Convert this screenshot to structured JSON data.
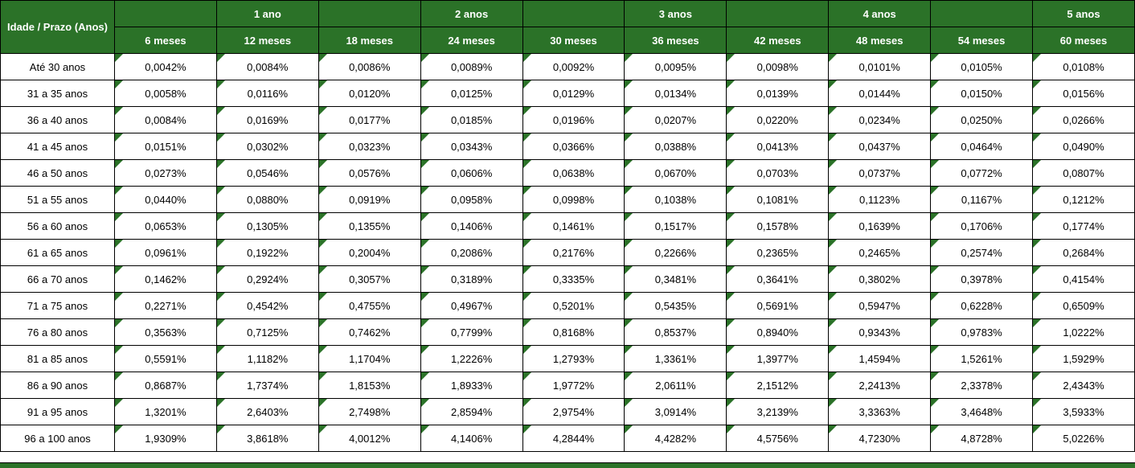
{
  "colors": {
    "header_green": "#2B7228",
    "triangle_green": "#2B7228",
    "gridline_black": "#000000",
    "cell_white": "#FFFFFF",
    "header_text_white": "#FFFFFF",
    "body_text_black": "#000000"
  },
  "table": {
    "corner_label": "Idade / Prazo (Anos)",
    "year_headers": [
      "",
      "1 ano",
      "",
      "2 anos",
      "",
      "3 anos",
      "",
      "4 anos",
      "",
      "5 anos"
    ],
    "month_headers": [
      "6 meses",
      "12 meses",
      "18 meses",
      "24 meses",
      "30 meses",
      "36 meses",
      "42 meses",
      "48 meses",
      "54 meses",
      "60 meses"
    ],
    "rows": [
      {
        "label": "Até 30 anos",
        "values": [
          "0,0042%",
          "0,0084%",
          "0,0086%",
          "0,0089%",
          "0,0092%",
          "0,0095%",
          "0,0098%",
          "0,0101%",
          "0,0105%",
          "0,0108%"
        ]
      },
      {
        "label": "31 a 35 anos",
        "values": [
          "0,0058%",
          "0,0116%",
          "0,0120%",
          "0,0125%",
          "0,0129%",
          "0,0134%",
          "0,0139%",
          "0,0144%",
          "0,0150%",
          "0,0156%"
        ]
      },
      {
        "label": "36 a 40 anos",
        "values": [
          "0,0084%",
          "0,0169%",
          "0,0177%",
          "0,0185%",
          "0,0196%",
          "0,0207%",
          "0,0220%",
          "0,0234%",
          "0,0250%",
          "0,0266%"
        ]
      },
      {
        "label": "41 a 45 anos",
        "values": [
          "0,0151%",
          "0,0302%",
          "0,0323%",
          "0,0343%",
          "0,0366%",
          "0,0388%",
          "0,0413%",
          "0,0437%",
          "0,0464%",
          "0,0490%"
        ]
      },
      {
        "label": "46 a 50 anos",
        "values": [
          "0,0273%",
          "0,0546%",
          "0,0576%",
          "0,0606%",
          "0,0638%",
          "0,0670%",
          "0,0703%",
          "0,0737%",
          "0,0772%",
          "0,0807%"
        ]
      },
      {
        "label": "51 a 55 anos",
        "values": [
          "0,0440%",
          "0,0880%",
          "0,0919%",
          "0,0958%",
          "0,0998%",
          "0,1038%",
          "0,1081%",
          "0,1123%",
          "0,1167%",
          "0,1212%"
        ]
      },
      {
        "label": "56 a 60 anos",
        "values": [
          "0,0653%",
          "0,1305%",
          "0,1355%",
          "0,1406%",
          "0,1461%",
          "0,1517%",
          "0,1578%",
          "0,1639%",
          "0,1706%",
          "0,1774%"
        ]
      },
      {
        "label": "61 a 65 anos",
        "values": [
          "0,0961%",
          "0,1922%",
          "0,2004%",
          "0,2086%",
          "0,2176%",
          "0,2266%",
          "0,2365%",
          "0,2465%",
          "0,2574%",
          "0,2684%"
        ]
      },
      {
        "label": "66 a 70 anos",
        "values": [
          "0,1462%",
          "0,2924%",
          "0,3057%",
          "0,3189%",
          "0,3335%",
          "0,3481%",
          "0,3641%",
          "0,3802%",
          "0,3978%",
          "0,4154%"
        ]
      },
      {
        "label": "71 a 75 anos",
        "values": [
          "0,2271%",
          "0,4542%",
          "0,4755%",
          "0,4967%",
          "0,5201%",
          "0,5435%",
          "0,5691%",
          "0,5947%",
          "0,6228%",
          "0,6509%"
        ]
      },
      {
        "label": "76 a 80 anos",
        "values": [
          "0,3563%",
          "0,7125%",
          "0,7462%",
          "0,7799%",
          "0,8168%",
          "0,8537%",
          "0,8940%",
          "0,9343%",
          "0,9783%",
          "1,0222%"
        ]
      },
      {
        "label": "81 a 85 anos",
        "values": [
          "0,5591%",
          "1,1182%",
          "1,1704%",
          "1,2226%",
          "1,2793%",
          "1,3361%",
          "1,3977%",
          "1,4594%",
          "1,5261%",
          "1,5929%"
        ]
      },
      {
        "label": "86 a 90 anos",
        "values": [
          "0,8687%",
          "1,7374%",
          "1,8153%",
          "1,8933%",
          "1,9772%",
          "2,0611%",
          "2,1512%",
          "2,2413%",
          "2,3378%",
          "2,4343%"
        ]
      },
      {
        "label": "91 a 95 anos",
        "values": [
          "1,3201%",
          "2,6403%",
          "2,7498%",
          "2,8594%",
          "2,9754%",
          "3,0914%",
          "3,2139%",
          "3,3363%",
          "3,4648%",
          "3,5933%"
        ]
      },
      {
        "label": "96 a 100 anos",
        "values": [
          "1,9309%",
          "3,8618%",
          "4,0012%",
          "4,1406%",
          "4,2844%",
          "4,4282%",
          "4,5756%",
          "4,7230%",
          "4,8728%",
          "5,0226%"
        ]
      }
    ]
  }
}
